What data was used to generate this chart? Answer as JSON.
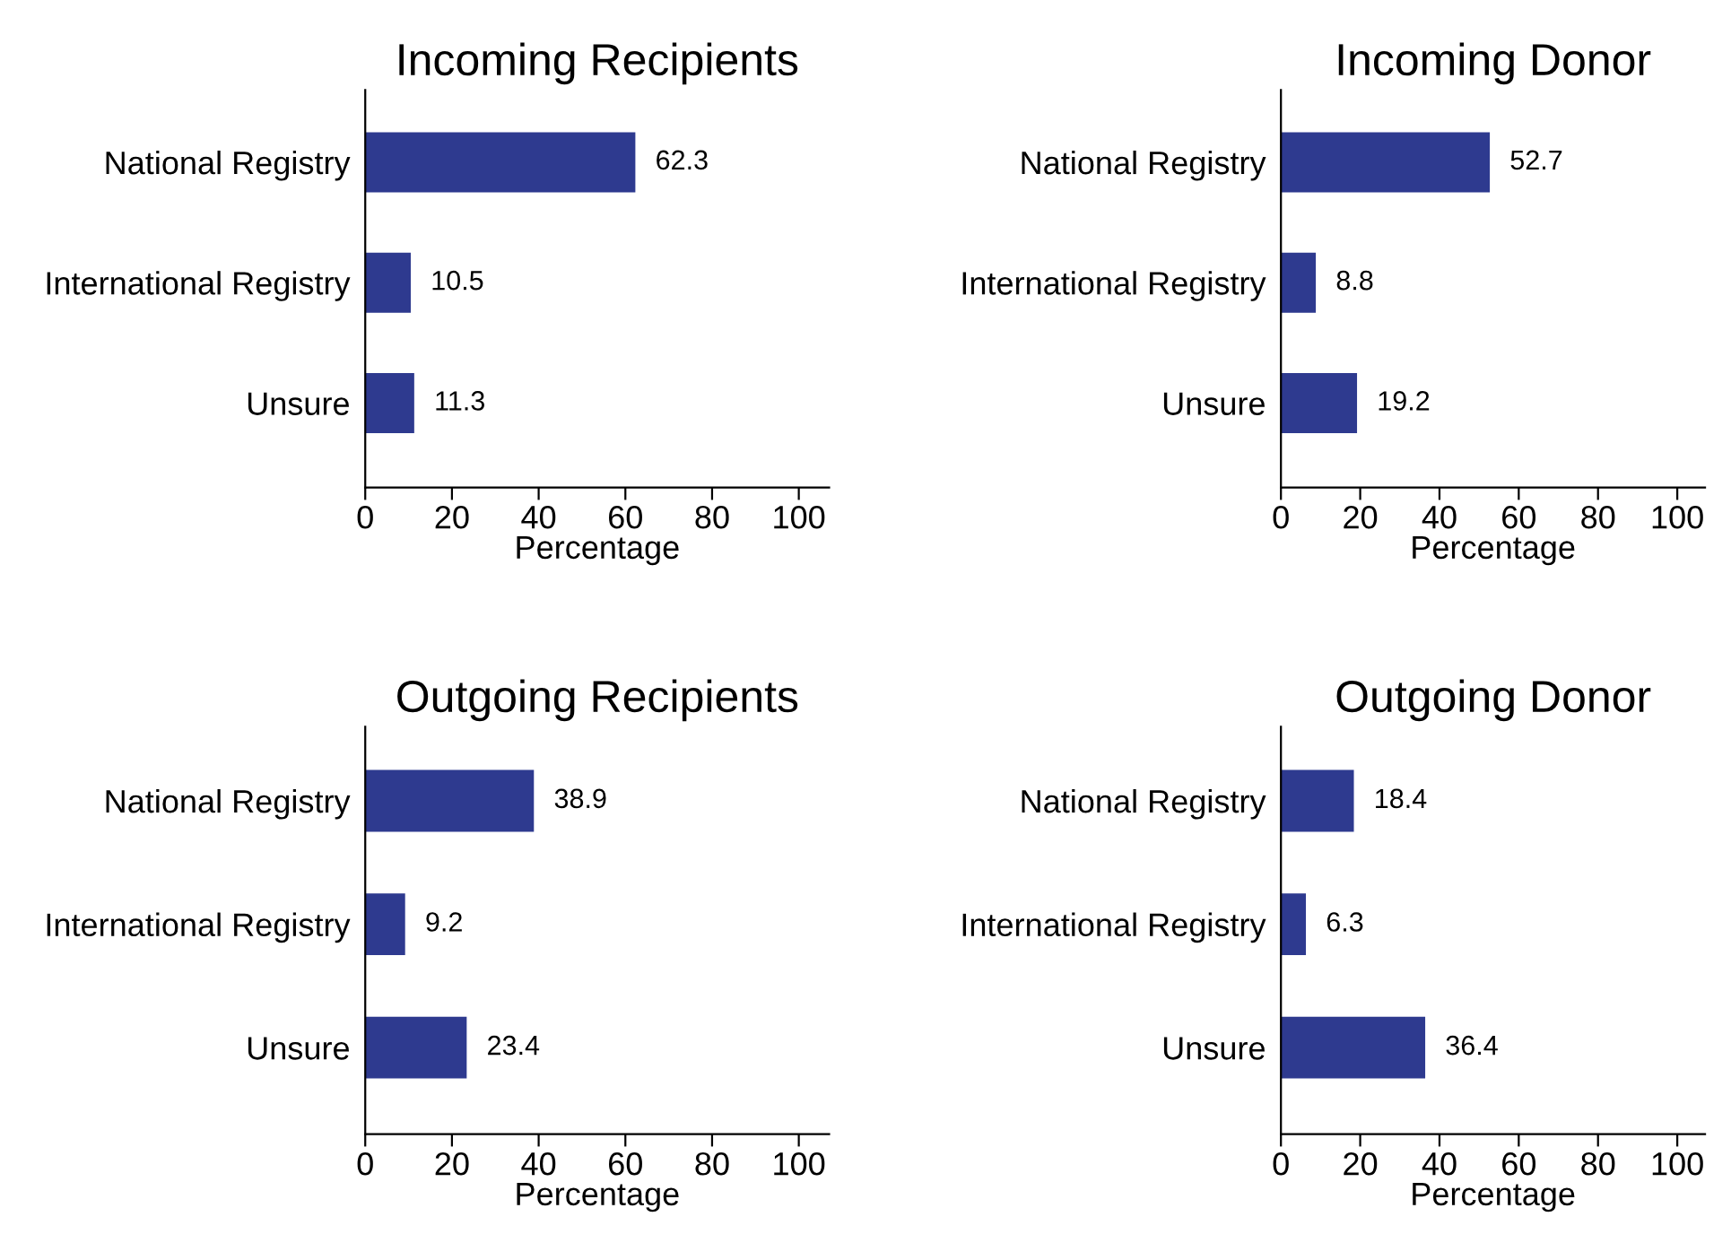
{
  "chart_data": [
    {
      "type": "bar",
      "orientation": "horizontal",
      "title": "Incoming Recipients",
      "xlabel": "Percentage",
      "categories": [
        "National Registry",
        "International Registry",
        "Unsure"
      ],
      "values": [
        62.3,
        10.5,
        11.3
      ],
      "color": "#2e3a8f",
      "xlim": [
        0,
        107
      ],
      "xticks": [
        0,
        20,
        40,
        60,
        80,
        100
      ],
      "data_labels": true,
      "grid": false,
      "legend": false
    },
    {
      "type": "bar",
      "orientation": "horizontal",
      "title": "Incoming Donor",
      "xlabel": "Percentage",
      "categories": [
        "National Registry",
        "International Registry",
        "Unsure"
      ],
      "values": [
        52.7,
        8.8,
        19.2
      ],
      "color": "#2e3a8f",
      "xlim": [
        0,
        107
      ],
      "xticks": [
        0,
        20,
        40,
        60,
        80,
        100
      ],
      "data_labels": true,
      "grid": false,
      "legend": false
    },
    {
      "type": "bar",
      "orientation": "horizontal",
      "title": "Outgoing Recipients",
      "xlabel": "Percentage",
      "categories": [
        "National Registry",
        "International Registry",
        "Unsure"
      ],
      "values": [
        38.9,
        9.2,
        23.4
      ],
      "color": "#2e3a8f",
      "xlim": [
        0,
        107
      ],
      "xticks": [
        0,
        20,
        40,
        60,
        80,
        100
      ],
      "data_labels": true,
      "grid": false,
      "legend": false
    },
    {
      "type": "bar",
      "orientation": "horizontal",
      "title": "Outgoing Donor",
      "xlabel": "Percentage",
      "categories": [
        "National Registry",
        "International Registry",
        "Unsure"
      ],
      "values": [
        18.4,
        6.3,
        36.4
      ],
      "color": "#2e3a8f",
      "xlim": [
        0,
        107
      ],
      "xticks": [
        0,
        20,
        40,
        60,
        80,
        100
      ],
      "data_labels": true,
      "grid": false,
      "legend": false
    }
  ]
}
